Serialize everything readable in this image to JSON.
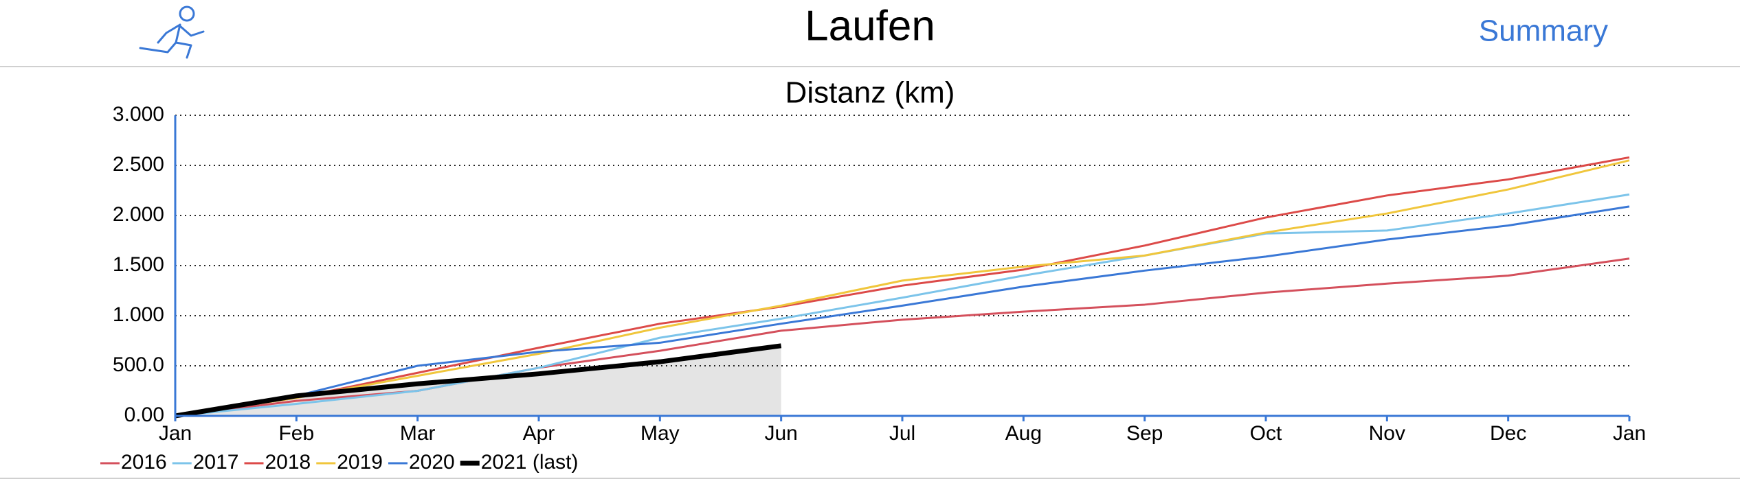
{
  "header": {
    "title": "Laufen",
    "action": "Summary"
  },
  "chart_data": {
    "type": "line",
    "title": "Distanz (km)",
    "categories": [
      "Jan",
      "Feb",
      "Mar",
      "Apr",
      "May",
      "Jun",
      "Jul",
      "Aug",
      "Sep",
      "Oct",
      "Nov",
      "Dec",
      "Jan"
    ],
    "series": [
      {
        "name": "2016",
        "color": "#d4505c",
        "linewidth": 3,
        "values": [
          0,
          150,
          250,
          480,
          650,
          850,
          960,
          1040,
          1110,
          1230,
          1320,
          1400,
          1570
        ]
      },
      {
        "name": "2017",
        "color": "#7cc4ea",
        "linewidth": 3,
        "values": [
          0,
          120,
          250,
          480,
          780,
          970,
          1180,
          1400,
          1600,
          1820,
          1850,
          2020,
          2210
        ]
      },
      {
        "name": "2018",
        "color": "#dc4a48",
        "linewidth": 3,
        "values": [
          0,
          180,
          430,
          680,
          920,
          1090,
          1300,
          1460,
          1700,
          1980,
          2200,
          2360,
          2580
        ]
      },
      {
        "name": "2019",
        "color": "#f0c63c",
        "linewidth": 3,
        "values": [
          0,
          180,
          400,
          620,
          880,
          1100,
          1350,
          1490,
          1600,
          1830,
          2020,
          2260,
          2550
        ]
      },
      {
        "name": "2020",
        "color": "#3a78d6",
        "linewidth": 3,
        "values": [
          0,
          200,
          500,
          640,
          730,
          920,
          1100,
          1290,
          1450,
          1590,
          1760,
          1900,
          2090
        ]
      },
      {
        "name": "2021 (last)",
        "color": "#000000",
        "linewidth": 7,
        "area": true,
        "values": [
          0,
          200,
          320,
          420,
          540,
          700,
          null,
          null,
          null,
          null,
          null,
          null,
          null
        ]
      }
    ],
    "ylim": [
      0,
      3000
    ],
    "yticks": [
      {
        "value": 0,
        "label": "0.00"
      },
      {
        "value": 500,
        "label": "500.0"
      },
      {
        "value": 1000,
        "label": "1.000"
      },
      {
        "value": 1500,
        "label": "1.500"
      },
      {
        "value": 2000,
        "label": "2.000"
      },
      {
        "value": 2500,
        "label": "2.500"
      },
      {
        "value": 3000,
        "label": "3.000"
      }
    ],
    "grid": true,
    "legend": "bottom-left"
  }
}
